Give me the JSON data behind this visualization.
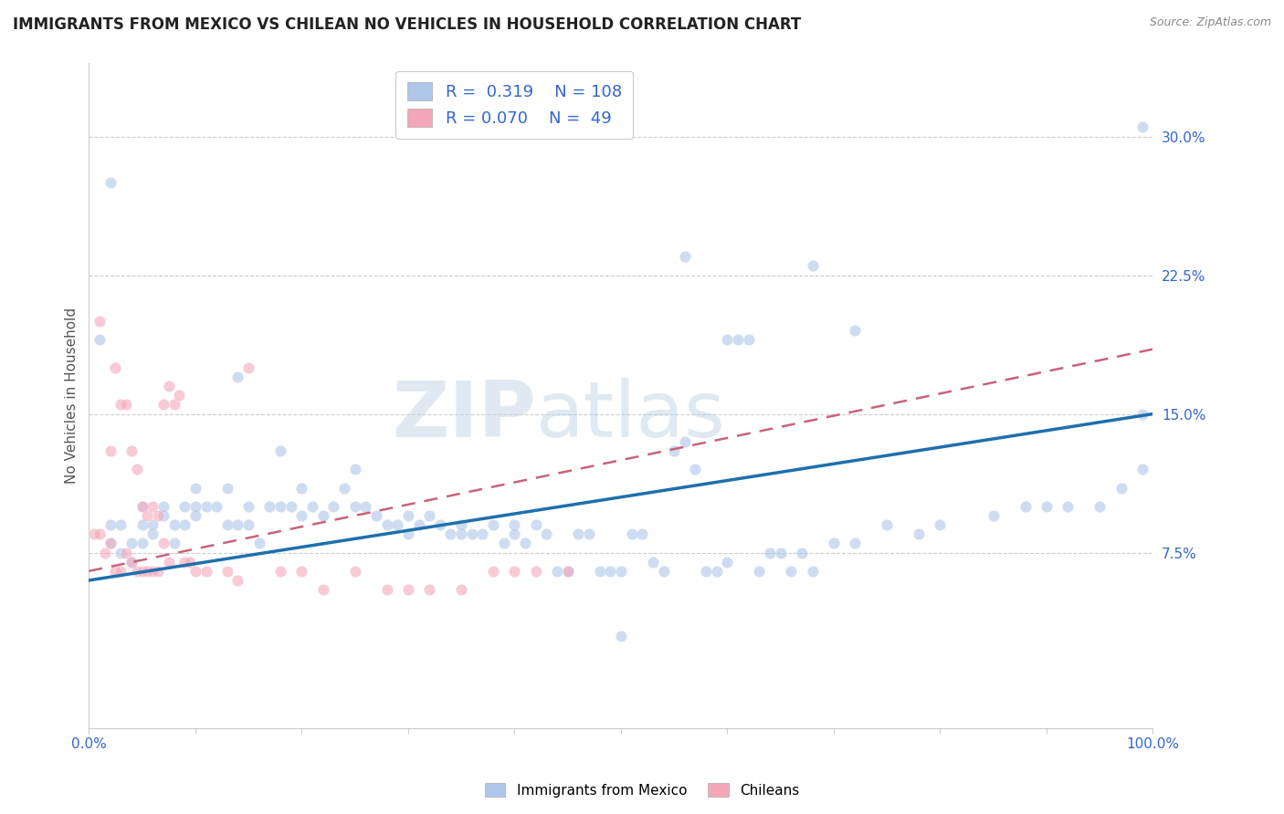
{
  "title": "IMMIGRANTS FROM MEXICO VS CHILEAN NO VEHICLES IN HOUSEHOLD CORRELATION CHART",
  "source": "Source: ZipAtlas.com",
  "ylabel": "No Vehicles in Household",
  "ytick_labels": [
    "7.5%",
    "15.0%",
    "22.5%",
    "30.0%"
  ],
  "ytick_values": [
    0.075,
    0.15,
    0.225,
    0.3
  ],
  "xlim": [
    0.0,
    1.0
  ],
  "ylim": [
    -0.02,
    0.34
  ],
  "legend_entries": [
    {
      "label": "Immigrants from Mexico",
      "R": "0.319",
      "N": "108",
      "color": "#aec6e8"
    },
    {
      "label": "Chileans",
      "R": "0.070",
      "N": "49",
      "color": "#f4a7b9"
    }
  ],
  "watermark_zip": "ZIP",
  "watermark_atlas": "atlas",
  "mexico_color": "#aec6e8",
  "mexico_line_color": "#1f6fad",
  "chile_color": "#f4a7b9",
  "chile_line_color": "#c8637a",
  "scatter_alpha": 0.6,
  "scatter_size": 80,
  "mexico_trend_x0": 0.0,
  "mexico_trend_y0": 0.06,
  "mexico_trend_x1": 1.0,
  "mexico_trend_y1": 0.15,
  "chile_trend_x0": 0.0,
  "chile_trend_y0": 0.065,
  "chile_trend_x1": 1.0,
  "chile_trend_y1": 0.185,
  "mexico_x": [
    0.01,
    0.02,
    0.02,
    0.03,
    0.03,
    0.04,
    0.04,
    0.05,
    0.05,
    0.05,
    0.06,
    0.06,
    0.07,
    0.07,
    0.08,
    0.08,
    0.09,
    0.09,
    0.1,
    0.1,
    0.1,
    0.11,
    0.12,
    0.13,
    0.13,
    0.14,
    0.15,
    0.15,
    0.16,
    0.17,
    0.18,
    0.18,
    0.19,
    0.2,
    0.2,
    0.21,
    0.22,
    0.23,
    0.24,
    0.25,
    0.25,
    0.26,
    0.27,
    0.28,
    0.29,
    0.3,
    0.3,
    0.31,
    0.32,
    0.33,
    0.34,
    0.35,
    0.35,
    0.36,
    0.37,
    0.38,
    0.39,
    0.4,
    0.4,
    0.41,
    0.42,
    0.43,
    0.44,
    0.45,
    0.46,
    0.47,
    0.48,
    0.49,
    0.5,
    0.51,
    0.52,
    0.53,
    0.54,
    0.55,
    0.56,
    0.57,
    0.58,
    0.59,
    0.6,
    0.61,
    0.62,
    0.63,
    0.64,
    0.65,
    0.66,
    0.67,
    0.68,
    0.7,
    0.72,
    0.75,
    0.78,
    0.8,
    0.85,
    0.88,
    0.9,
    0.92,
    0.95,
    0.97,
    0.99,
    0.02,
    0.14,
    0.5,
    0.56,
    0.6,
    0.68,
    0.72,
    0.99,
    0.99
  ],
  "mexico_y": [
    0.19,
    0.08,
    0.09,
    0.075,
    0.09,
    0.07,
    0.08,
    0.08,
    0.09,
    0.1,
    0.085,
    0.09,
    0.095,
    0.1,
    0.08,
    0.09,
    0.09,
    0.1,
    0.095,
    0.1,
    0.11,
    0.1,
    0.1,
    0.09,
    0.11,
    0.09,
    0.09,
    0.1,
    0.08,
    0.1,
    0.1,
    0.13,
    0.1,
    0.095,
    0.11,
    0.1,
    0.095,
    0.1,
    0.11,
    0.1,
    0.12,
    0.1,
    0.095,
    0.09,
    0.09,
    0.085,
    0.095,
    0.09,
    0.095,
    0.09,
    0.085,
    0.085,
    0.09,
    0.085,
    0.085,
    0.09,
    0.08,
    0.09,
    0.085,
    0.08,
    0.09,
    0.085,
    0.065,
    0.065,
    0.085,
    0.085,
    0.065,
    0.065,
    0.065,
    0.085,
    0.085,
    0.07,
    0.065,
    0.13,
    0.135,
    0.12,
    0.065,
    0.065,
    0.07,
    0.19,
    0.19,
    0.065,
    0.075,
    0.075,
    0.065,
    0.075,
    0.065,
    0.08,
    0.08,
    0.09,
    0.085,
    0.09,
    0.095,
    0.1,
    0.1,
    0.1,
    0.1,
    0.11,
    0.12,
    0.275,
    0.17,
    0.03,
    0.235,
    0.19,
    0.23,
    0.195,
    0.305,
    0.15
  ],
  "chile_x": [
    0.005,
    0.01,
    0.015,
    0.02,
    0.025,
    0.03,
    0.035,
    0.04,
    0.045,
    0.05,
    0.055,
    0.06,
    0.065,
    0.07,
    0.075,
    0.08,
    0.085,
    0.09,
    0.095,
    0.1,
    0.01,
    0.02,
    0.025,
    0.03,
    0.035,
    0.04,
    0.045,
    0.05,
    0.055,
    0.06,
    0.065,
    0.07,
    0.075,
    0.11,
    0.13,
    0.14,
    0.15,
    0.18,
    0.2,
    0.22,
    0.25,
    0.28,
    0.3,
    0.32,
    0.35,
    0.38,
    0.4,
    0.42,
    0.45
  ],
  "chile_y": [
    0.085,
    0.085,
    0.075,
    0.08,
    0.065,
    0.065,
    0.075,
    0.07,
    0.065,
    0.065,
    0.065,
    0.065,
    0.065,
    0.08,
    0.07,
    0.155,
    0.16,
    0.07,
    0.07,
    0.065,
    0.2,
    0.13,
    0.175,
    0.155,
    0.155,
    0.13,
    0.12,
    0.1,
    0.095,
    0.1,
    0.095,
    0.155,
    0.165,
    0.065,
    0.065,
    0.06,
    0.175,
    0.065,
    0.065,
    0.055,
    0.065,
    0.055,
    0.055,
    0.055,
    0.055,
    0.065,
    0.065,
    0.065,
    0.065
  ]
}
